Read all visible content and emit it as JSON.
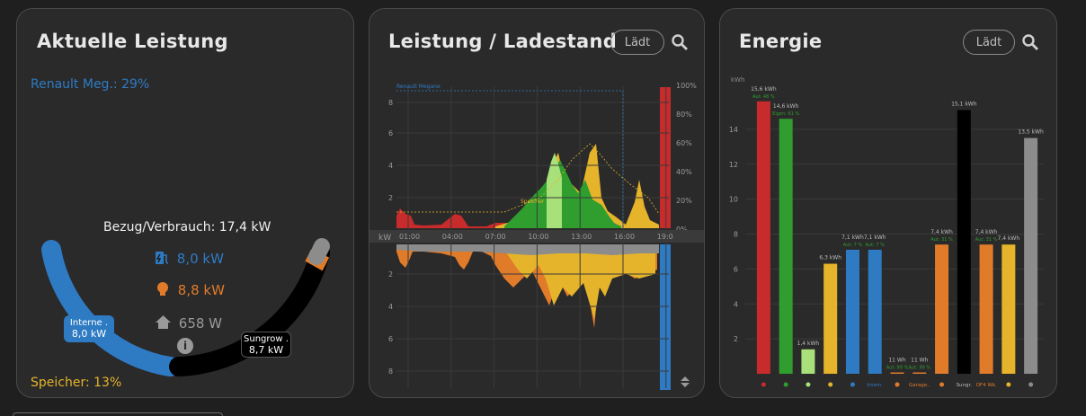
{
  "colors": {
    "grid": "#2f9e2f",
    "solar": "#e5b42a",
    "battery": "#c82b2b",
    "house": "#8c8c8c",
    "car": "#2e7bc4",
    "heat": "#e07b2a",
    "export": "#a8e07a"
  },
  "power": {
    "title": "Aktuelle Leistung",
    "ev_label": "Renault Meg.: 29%",
    "total_label": "Bezug/Verbrauch: 17,4 kW",
    "rows": [
      {
        "icon": "ev-charger-icon",
        "value": "8,0 kW",
        "color": "#2e7bc4"
      },
      {
        "icon": "bulb-icon",
        "value": "8,8 kW",
        "color": "#e07b2a"
      },
      {
        "icon": "home-icon",
        "value": "658 W",
        "color": "#9a9a9a"
      }
    ],
    "left_bubble": {
      "name": "Interne .",
      "value": "8,0 kW"
    },
    "right_bubble": {
      "name": "Sungrow .",
      "value": "8,7 kW"
    },
    "storage_label": "Speicher: 13%"
  },
  "chart1": {
    "title": "Leistung / Ladestand",
    "loading": "Lädt",
    "legend_car": "Renault Megane",
    "legend_storage": "Speicher",
    "unit": "kW",
    "y_ticks_top": [
      "8",
      "6",
      "4",
      "2"
    ],
    "y_ticks_bottom": [
      "2",
      "4",
      "6",
      "8"
    ],
    "pct_ticks": [
      "100%",
      "80%",
      "60%",
      "40%",
      "20%",
      "0%"
    ],
    "x_ticks": [
      "01:00",
      "04:00",
      "07:00",
      "10:00",
      "13:00",
      "16:00",
      "19:0"
    ]
  },
  "chart2": {
    "title": "Energie",
    "loading": "Lädt",
    "unit": "kWh",
    "y_ticks": [
      "14",
      "12",
      "10",
      "8",
      "6",
      "4",
      "2"
    ],
    "bars": [
      {
        "kwh": 15.6,
        "label": "15,6 kWh",
        "sub": "Aut: 48 %",
        "color": "#c82b2b",
        "cat": "icon"
      },
      {
        "kwh": 14.6,
        "label": "14,6 kWh",
        "sub": "Eigen: 61 %",
        "color": "#2f9e2f",
        "cat": "icon"
      },
      {
        "kwh": 1.4,
        "label": "1,4 kWh",
        "sub": "",
        "color": "#a8e07a",
        "cat": "icon"
      },
      {
        "kwh": 6.3,
        "label": "6,3 kWh",
        "sub": "",
        "color": "#e5b42a",
        "cat": "icon"
      },
      {
        "kwh": 7.1,
        "label": "7,1 kWh",
        "sub": "Aut: 7 %",
        "color": "#2e7bc4",
        "cat": "icon"
      },
      {
        "kwh": 7.1,
        "label": "7,1 kWh",
        "sub": "Aut: 7 %",
        "color": "#2e7bc4",
        "cat": "Intern."
      },
      {
        "kwh": 0.011,
        "label": "11 Wh",
        "sub": "Aut: 99 %",
        "color": "#e07b2a",
        "cat": "icon"
      },
      {
        "kwh": 0.011,
        "label": "11 Wh",
        "sub": "Aut: 99 %",
        "color": "#e07b2a",
        "cat": "Garage.."
      },
      {
        "kwh": 7.4,
        "label": "7,4 kWh",
        "sub": "Aut: 31 %",
        "color": "#e07b2a",
        "cat": "icon"
      },
      {
        "kwh": 15.1,
        "label": "15,1 kWh",
        "sub": "",
        "color": "#000000",
        "cat": "Sungr."
      },
      {
        "kwh": 7.4,
        "label": "7,4 kWh",
        "sub": "Aut: 31 %",
        "color": "#e07b2a",
        "cat": "OF4 Wä."
      },
      {
        "kwh": 7.4,
        "label": "7,4 kWh",
        "sub": "",
        "color": "#e5b42a",
        "cat": "icon"
      },
      {
        "kwh": 13.5,
        "label": "13,5 kWh",
        "sub": "",
        "color": "#8c8c8c",
        "cat": "icon"
      }
    ]
  }
}
